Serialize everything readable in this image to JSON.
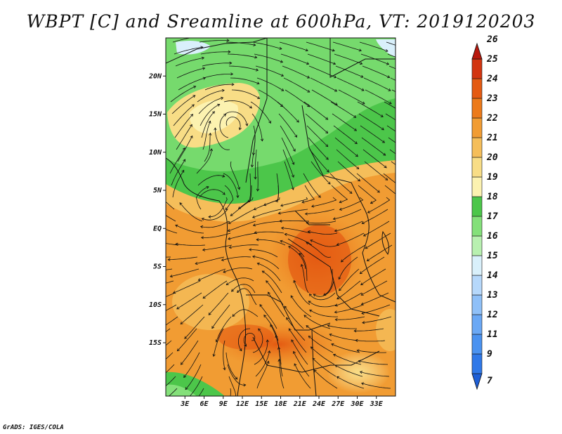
{
  "title": "WBPT [C] and Sreamline at 600hPa, VT: 2019120203",
  "credit": "GrADS: IGES/COLA",
  "map": {
    "lon_range": [
      0,
      36
    ],
    "lat_range": [
      -22,
      25
    ],
    "lon_ticks": [
      {
        "value": 3,
        "label": "3E"
      },
      {
        "value": 6,
        "label": "6E"
      },
      {
        "value": 9,
        "label": "9E"
      },
      {
        "value": 12,
        "label": "12E"
      },
      {
        "value": 15,
        "label": "15E"
      },
      {
        "value": 18,
        "label": "18E"
      },
      {
        "value": 21,
        "label": "21E"
      },
      {
        "value": 24,
        "label": "24E"
      },
      {
        "value": 27,
        "label": "27E"
      },
      {
        "value": 30,
        "label": "30E"
      },
      {
        "value": 33,
        "label": "33E"
      }
    ],
    "lat_ticks": [
      {
        "value": 20,
        "label": "20N"
      },
      {
        "value": 15,
        "label": "15N"
      },
      {
        "value": 10,
        "label": "10N"
      },
      {
        "value": 5,
        "label": "5N"
      },
      {
        "value": 0,
        "label": "EQ"
      },
      {
        "value": -5,
        "label": "5S"
      },
      {
        "value": -10,
        "label": "10S"
      },
      {
        "value": -15,
        "label": "15S"
      }
    ]
  },
  "colorbar": {
    "levels": [
      "7",
      "9",
      "11",
      "12",
      "13",
      "14",
      "15",
      "16",
      "17",
      "18",
      "19",
      "20",
      "21",
      "22",
      "23",
      "24",
      "25",
      "26"
    ],
    "colors": [
      "#1e5fd6",
      "#2f78e8",
      "#4a92f0",
      "#6aa8f5",
      "#8fc0f8",
      "#b6d8fb",
      "#d9f0fb",
      "#b8f0b0",
      "#84e07a",
      "#4cc64a",
      "#fcf2b0",
      "#f8dd86",
      "#f5be5a",
      "#f19c33",
      "#ec7a1a",
      "#e45a12",
      "#d23510",
      "#b8180d"
    ]
  }
}
